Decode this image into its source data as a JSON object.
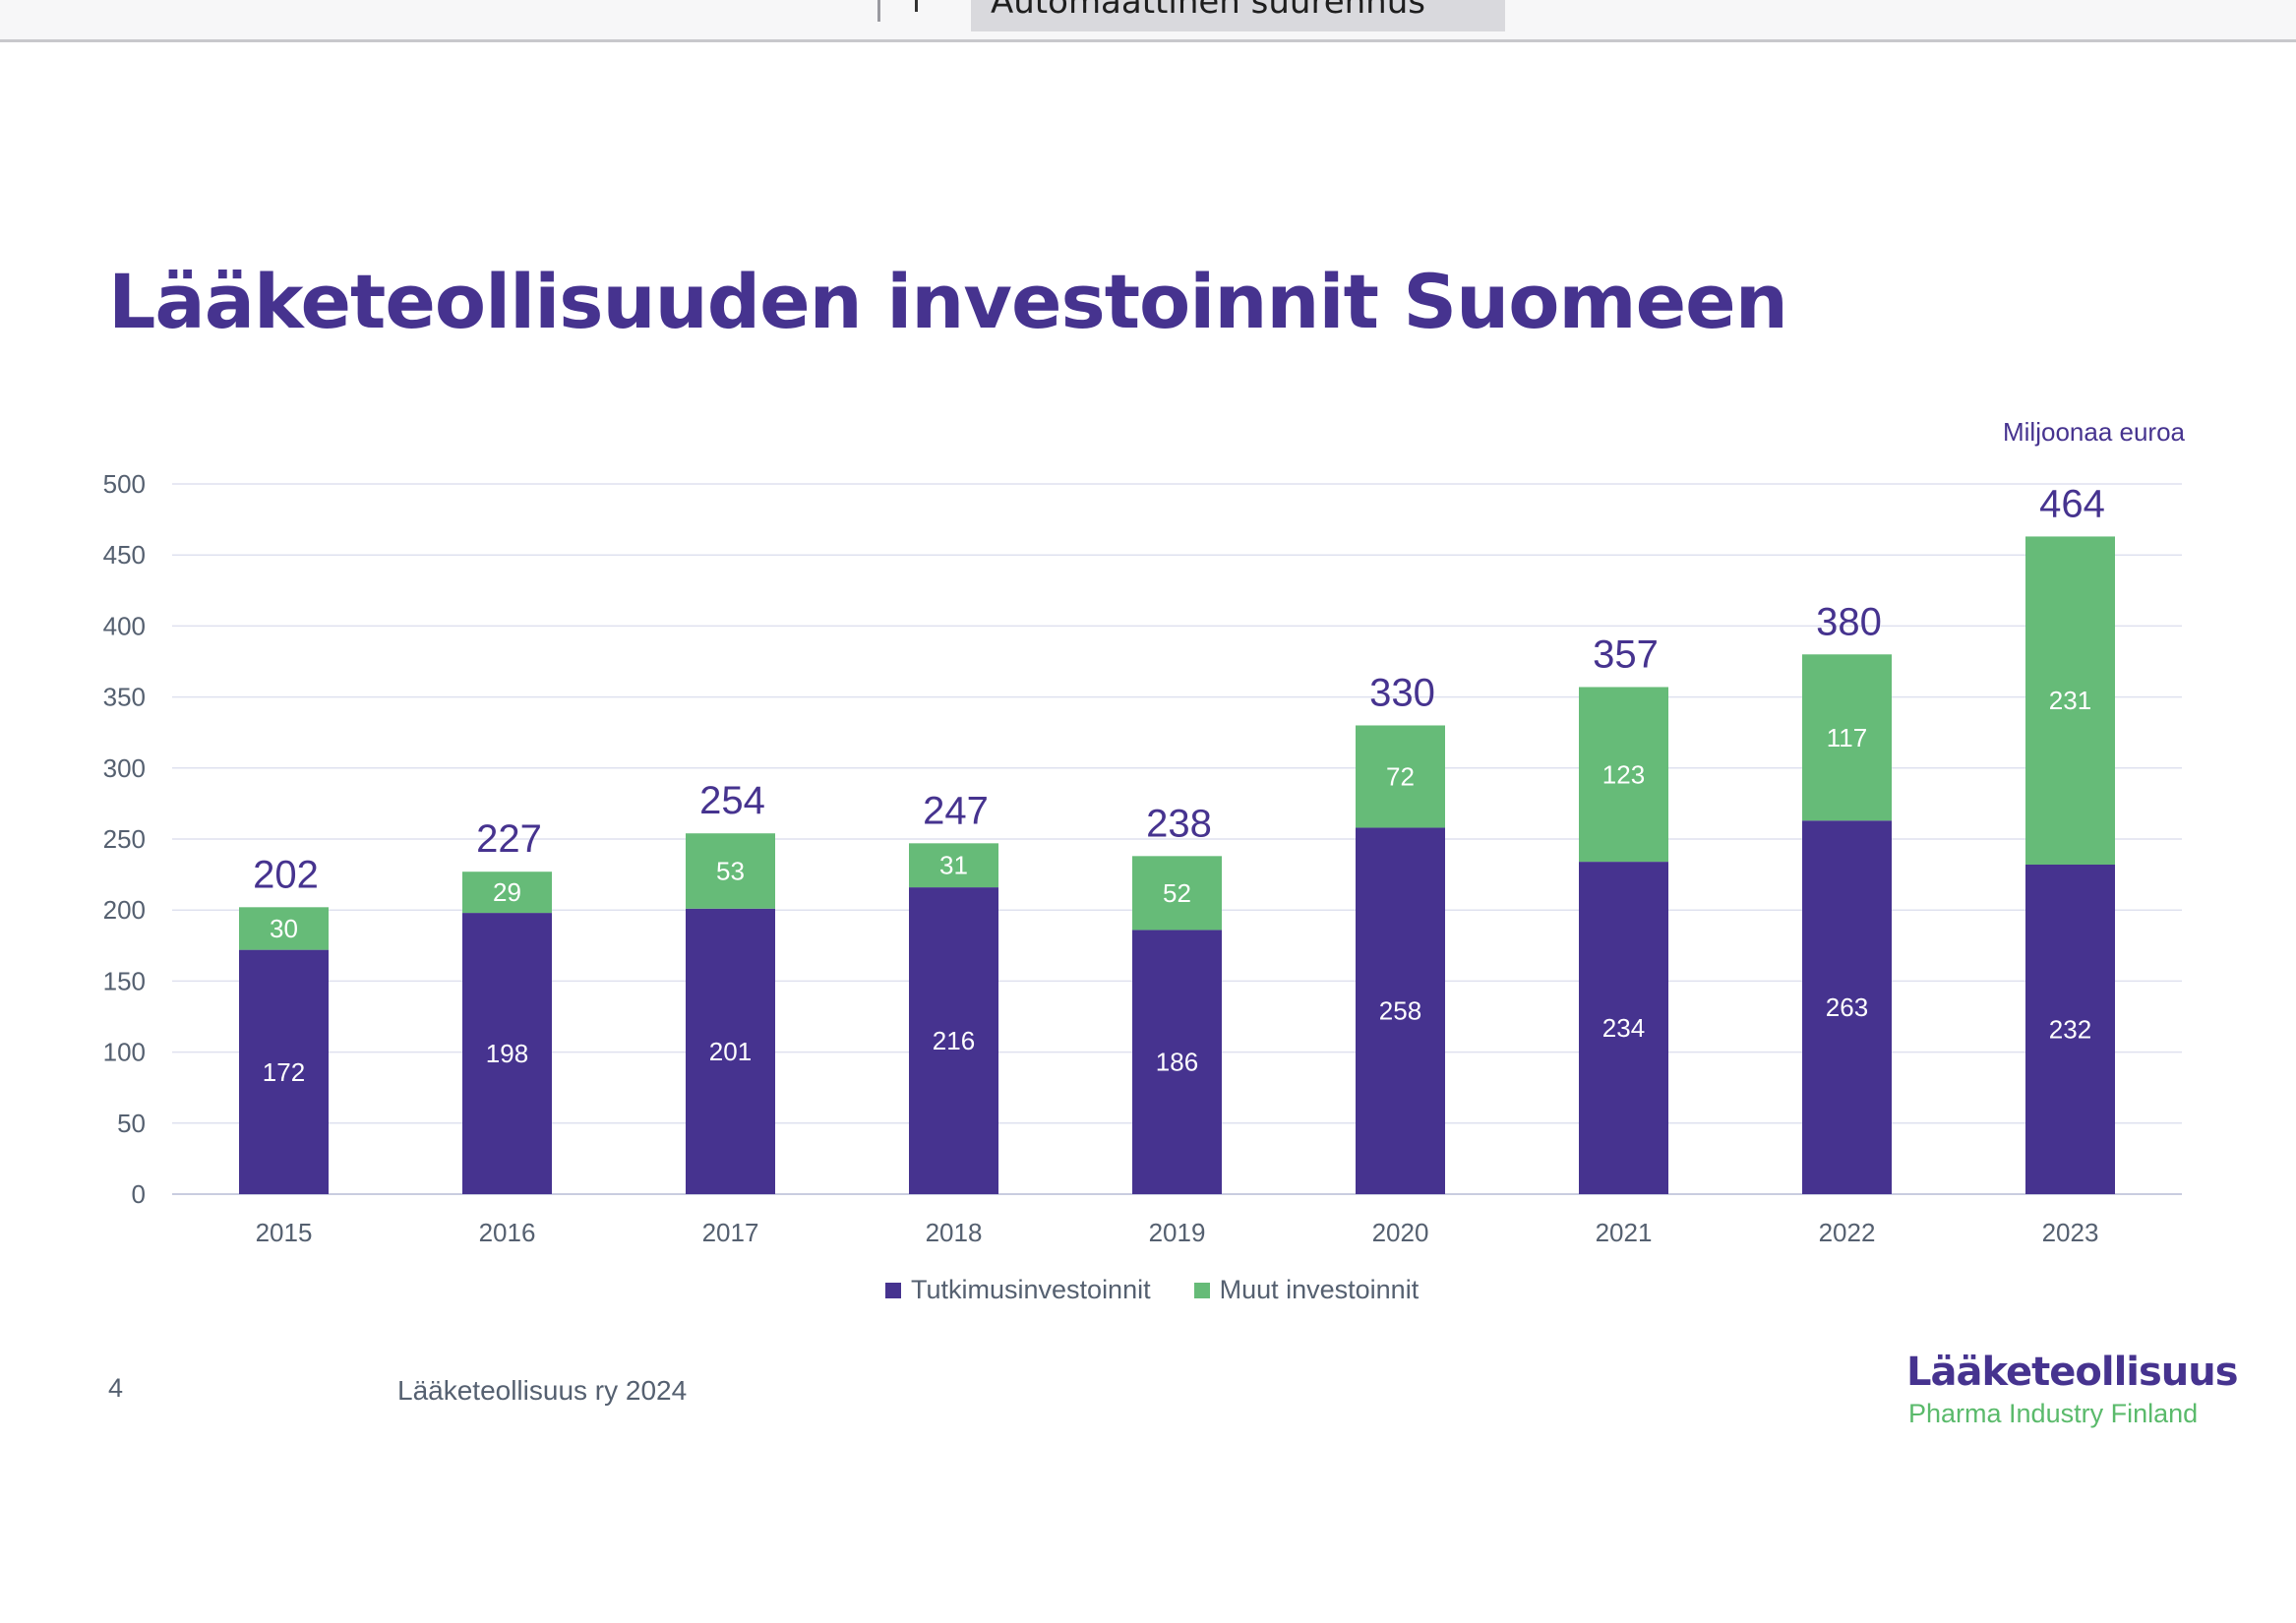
{
  "topbar": {
    "zoom_field_text": "Automaattinen suurennus"
  },
  "slide": {
    "title": "Lääketeollisuuden investoinnit Suomeen",
    "unit_label": "Miljoonaa euroa",
    "page_number": "4",
    "footer_source": "Lääketeollisuus ry 2024"
  },
  "logo": {
    "line1": "Lääketeollisuus",
    "line2": "Pharma Industry Finland"
  },
  "legend": {
    "items": [
      {
        "label": "Tutkimusinvestoinnit",
        "color": "#46338f"
      },
      {
        "label": "Muut investoinnit",
        "color": "#66bb78"
      }
    ]
  },
  "chart_data": {
    "type": "bar",
    "stacked": true,
    "categories": [
      "2015",
      "2016",
      "2017",
      "2018",
      "2019",
      "2020",
      "2021",
      "2022",
      "2023"
    ],
    "series": [
      {
        "name": "Tutkimusinvestoinnit",
        "color": "#46338f",
        "values": [
          172,
          198,
          201,
          216,
          186,
          258,
          234,
          263,
          232
        ]
      },
      {
        "name": "Muut investoinnit",
        "color": "#66bb78",
        "values": [
          30,
          29,
          53,
          31,
          52,
          72,
          123,
          117,
          231
        ]
      }
    ],
    "totals": [
      202,
      227,
      254,
      247,
      238,
      330,
      357,
      380,
      464
    ],
    "ylim": [
      0,
      500
    ],
    "yticks": [
      0,
      50,
      100,
      150,
      200,
      250,
      300,
      350,
      400,
      450,
      500
    ],
    "grid": true,
    "legend_position": "bottom",
    "title": "",
    "xlabel": "",
    "ylabel": ""
  }
}
